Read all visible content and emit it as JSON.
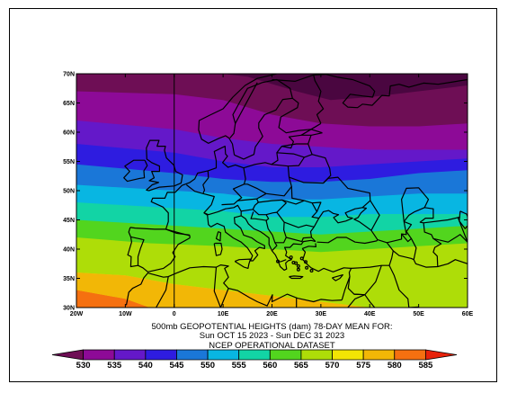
{
  "title_line1": "500mb GEOPOTENTIAL HEIGHTS (dam)   78-DAY MEAN FOR:",
  "title_line2": "Sun OCT 15 2023 - Sun DEC 31 2023",
  "dataset": "NCEP OPERATIONAL DATASET",
  "lon_ticks": [
    "20W",
    "10W",
    "0",
    "10E",
    "20E",
    "30E",
    "40E",
    "50E",
    "60E"
  ],
  "lat_ticks": [
    "30N",
    "35N",
    "40N",
    "45N",
    "50N",
    "55N",
    "60N",
    "65N",
    "70N"
  ],
  "extent": {
    "lon_min": -20,
    "lon_max": 60,
    "lat_min": 30,
    "lat_max": 70
  },
  "colorbar": {
    "levels": [
      "530",
      "535",
      "540",
      "545",
      "550",
      "555",
      "560",
      "565",
      "570",
      "575",
      "580",
      "585"
    ],
    "colors": [
      "#6e0e55",
      "#8d0a97",
      "#6418c9",
      "#2e1ce0",
      "#1a77d8",
      "#08b6e2",
      "#12d4a5",
      "#52d51e",
      "#aedd08",
      "#f2e504",
      "#f2b706",
      "#f57010",
      "#e8220a"
    ]
  },
  "fill_colors": {
    "below530": "#4a0640",
    "530": "#6e0e55",
    "535": "#8d0a97",
    "540": "#6418c9",
    "545": "#2e1ce0",
    "550": "#1a77d8",
    "555": "#08b6e2",
    "560": "#12d4a5",
    "565": "#52d51e",
    "570": "#aedd08",
    "575": "#f2e504",
    "580": "#f2b706",
    "585": "#f57010"
  }
}
